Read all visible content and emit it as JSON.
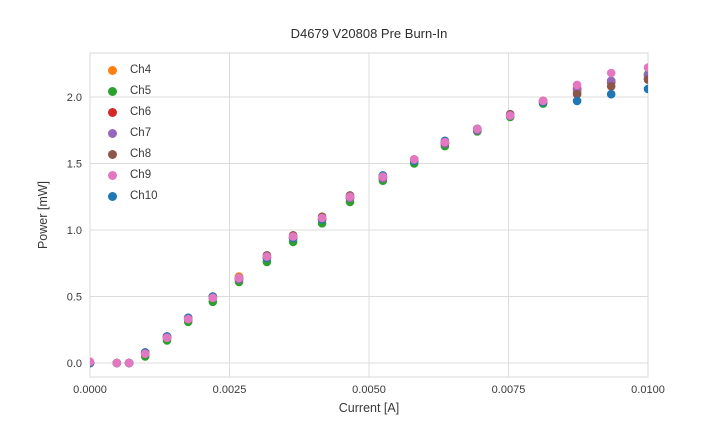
{
  "chart_data": {
    "type": "scatter",
    "title": "D4679 V20808 Pre Burn-In",
    "xlabel": "Current [A]",
    "ylabel": "Power [mW]",
    "xlim": [
      0.0,
      0.01
    ],
    "ylim": [
      -0.105,
      2.33
    ],
    "grid": true,
    "legend_position": "upper left",
    "background_color": "#ffffff",
    "grid_color": "#dcdcdc",
    "spine_color": "#d9d9d9",
    "text_color": "#3a3a3a",
    "xticks": {
      "values": [
        0.0,
        0.0025,
        0.005,
        0.0075,
        0.01
      ],
      "labels": [
        "0.0000",
        "0.0025",
        "0.0050",
        "0.0075",
        "0.0100"
      ]
    },
    "yticks": {
      "values": [
        0.0,
        0.5,
        1.0,
        1.5,
        2.0
      ],
      "labels": [
        "0.0",
        "0.5",
        "1.0",
        "1.5",
        "2.0"
      ]
    },
    "x": [
      0.0,
      0.00048,
      0.0007,
      0.00099,
      0.00138,
      0.00176,
      0.0022,
      0.00267,
      0.00317,
      0.00364,
      0.00416,
      0.00466,
      0.00525,
      0.00581,
      0.00636,
      0.00694,
      0.00753,
      0.00812,
      0.00873,
      0.00934,
      0.01
    ],
    "series": [
      {
        "name": "Ch4",
        "color": "#ff7f0e",
        "values": [
          0.0,
          0.0,
          0.0,
          0.07,
          0.19,
          0.33,
          0.49,
          0.65,
          0.79,
          0.94,
          1.08,
          1.24,
          1.39,
          1.52,
          1.65,
          1.75,
          1.86,
          1.97,
          2.05,
          2.11,
          2.16
        ]
      },
      {
        "name": "Ch5",
        "color": "#2ca02c",
        "values": [
          0.0,
          0.0,
          0.0,
          0.05,
          0.17,
          0.31,
          0.46,
          0.61,
          0.76,
          0.91,
          1.05,
          1.21,
          1.37,
          1.5,
          1.63,
          1.74,
          1.85,
          1.95,
          2.03,
          2.12,
          2.17
        ]
      },
      {
        "name": "Ch6",
        "color": "#d62728",
        "values": [
          0.0,
          0.0,
          0.0,
          0.07,
          0.19,
          0.33,
          0.49,
          0.63,
          0.79,
          0.94,
          1.08,
          1.24,
          1.39,
          1.53,
          1.65,
          1.75,
          1.86,
          1.97,
          2.06,
          2.11,
          2.14
        ]
      },
      {
        "name": "Ch7",
        "color": "#9467bd",
        "values": [
          0.0,
          0.0,
          0.0,
          0.07,
          0.19,
          0.33,
          0.49,
          0.63,
          0.79,
          0.94,
          1.08,
          1.24,
          1.39,
          1.52,
          1.65,
          1.75,
          1.86,
          1.97,
          2.05,
          2.12,
          2.16
        ]
      },
      {
        "name": "Ch8",
        "color": "#8c564b",
        "values": [
          0.0,
          0.0,
          0.0,
          0.08,
          0.2,
          0.34,
          0.5,
          0.64,
          0.81,
          0.96,
          1.1,
          1.26,
          1.4,
          1.53,
          1.66,
          1.76,
          1.87,
          1.96,
          2.02,
          2.08,
          2.13
        ]
      },
      {
        "name": "Ch9",
        "color": "#e377c2",
        "values": [
          0.01,
          0.0,
          0.0,
          0.07,
          0.19,
          0.33,
          0.49,
          0.64,
          0.8,
          0.95,
          1.09,
          1.25,
          1.4,
          1.53,
          1.66,
          1.76,
          1.86,
          1.97,
          2.09,
          2.18,
          2.22
        ]
      },
      {
        "name": "Ch10",
        "color": "#1f77b4",
        "values": [
          0.0,
          0.0,
          0.0,
          0.08,
          0.2,
          0.34,
          0.5,
          0.64,
          0.79,
          0.94,
          1.08,
          1.25,
          1.41,
          1.52,
          1.67,
          1.76,
          1.86,
          1.96,
          1.97,
          2.02,
          2.06
        ]
      }
    ],
    "draw_order": [
      "Ch4",
      "Ch5",
      "Ch6",
      "Ch7",
      "Ch8",
      "Ch10",
      "Ch9"
    ],
    "marker_radius_px": 4.3
  }
}
